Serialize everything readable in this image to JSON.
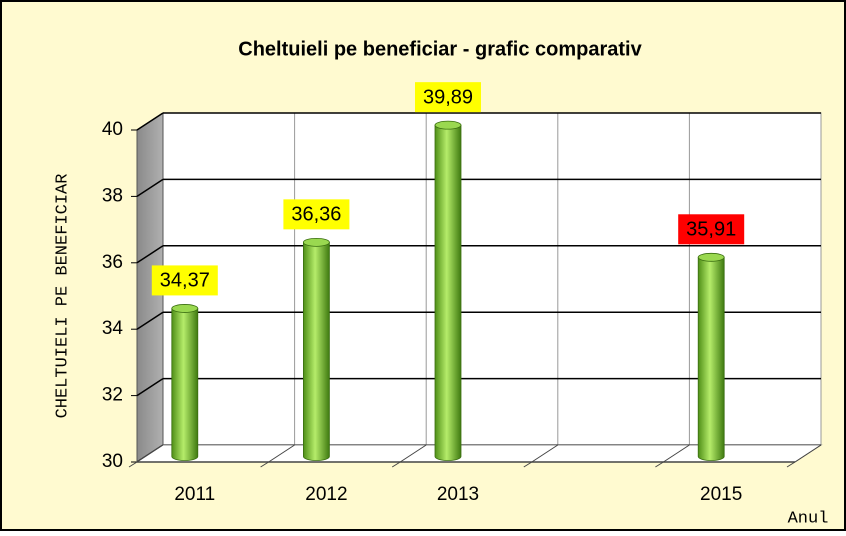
{
  "chart_data": {
    "type": "bar3d",
    "title": "Cheltuieli pe beneficiar - grafic comparativ",
    "xlabel": "Anul",
    "ylabel": "CHELTUIELI PE BENEFICIAR",
    "categories": [
      "2011",
      "2012",
      "2013",
      null,
      "2015"
    ],
    "values": [
      34.37,
      36.36,
      39.89,
      null,
      35.91
    ],
    "value_labels": [
      "34,37",
      "36,36",
      "39,89",
      null,
      "35,91"
    ],
    "label_colors": [
      "#ffff00",
      "#ffff00",
      "#ffff00",
      null,
      "#ff0000"
    ],
    "color": "#7dc832",
    "ylim": [
      30,
      40
    ],
    "yticks": [
      30,
      32,
      34,
      36,
      38,
      40
    ],
    "grid": true
  }
}
